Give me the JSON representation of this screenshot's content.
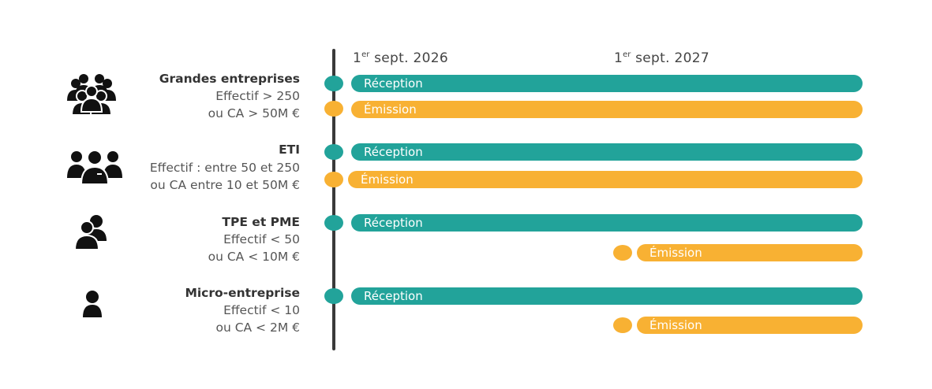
{
  "dates": {
    "d2026": {
      "sup": "er",
      "num": "1",
      "rest": " sept. 2026"
    },
    "d2027": {
      "sup": "er",
      "num": "1",
      "rest": " sept. 2027"
    }
  },
  "colors": {
    "reception": "#22a39a",
    "emission": "#f8b133",
    "axis": "#3a3a3a"
  },
  "segments": [
    {
      "icon": "large-group-icon",
      "title": "Grandes entreprises",
      "line1": "Effectif > 250",
      "line2": "ou CA > 50M €",
      "reception": "Réception",
      "emission": "Émission"
    },
    {
      "icon": "team-group-icon",
      "title": "ETI",
      "line1": "Effectif : entre 50 et 250",
      "line2": "ou CA entre 10 et 50M €",
      "reception": "Réception",
      "emission": "Émission"
    },
    {
      "icon": "small-group-icon",
      "title": "TPE et PME",
      "line1": "Effectif < 50",
      "line2": "ou CA < 10M €",
      "reception": "Réception",
      "emission": "Émission"
    },
    {
      "icon": "single-person-icon",
      "title": "Micro-entreprise",
      "line1": "Effectif < 10",
      "line2": "ou CA < 2M €",
      "reception": "Réception",
      "emission": "Émission"
    }
  ]
}
